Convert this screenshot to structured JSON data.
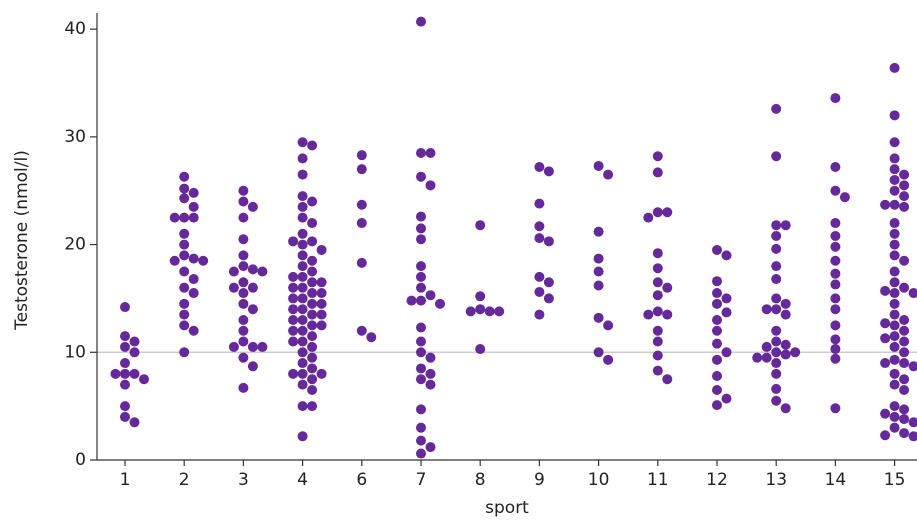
{
  "chart_data": {
    "type": "strip",
    "x_label": "sport",
    "y_label": "Testosterone (nmol/l)",
    "color": "#66299a",
    "categories": [
      "1",
      "2",
      "3",
      "4",
      "6",
      "7",
      "8",
      "9",
      "10",
      "11",
      "12",
      "13",
      "14",
      "15"
    ],
    "values": [
      [
        14.2,
        11.5,
        11,
        10.5,
        10,
        9,
        8,
        8,
        8,
        7.5,
        7,
        5,
        4,
        3.5
      ],
      [
        26.3,
        25.2,
        24.8,
        24.3,
        23.5,
        22.5,
        22.5,
        22.5,
        21,
        20,
        19,
        18.7,
        18.5,
        18.5,
        17.5,
        16.8,
        16,
        15.5,
        14.5,
        13.5,
        12.5,
        12,
        10
      ],
      [
        25,
        24,
        23.5,
        22.5,
        20.5,
        19,
        18,
        17.7,
        17.5,
        17.5,
        16.5,
        16,
        16,
        15.5,
        14.5,
        14,
        13,
        12,
        11,
        10.5,
        10.5,
        10.5,
        9.5,
        8.7,
        6.7
      ],
      [
        29.5,
        29.2,
        28,
        26.5,
        24.5,
        24,
        23.5,
        22.5,
        22,
        21,
        20.3,
        20.3,
        20,
        19.5,
        19,
        18.5,
        18,
        17.5,
        17,
        17,
        16.5,
        16.5,
        16,
        16,
        15.5,
        15.5,
        15,
        15,
        14.5,
        14.5,
        14,
        14,
        13.5,
        13.5,
        13,
        13,
        12.5,
        12.5,
        12,
        12,
        11.5,
        11,
        11,
        10.5,
        10,
        9.5,
        9,
        8.5,
        8,
        8,
        8,
        7.5,
        7,
        6.5,
        5,
        5,
        2.2
      ],
      [
        28.3,
        27,
        23.7,
        22,
        18.3,
        12,
        11.4
      ],
      [
        40.7,
        28.5,
        28.5,
        26.3,
        25.5,
        22.6,
        21.5,
        20.5,
        18,
        17,
        16,
        15.3,
        14.8,
        14.8,
        14.5,
        12.3,
        11,
        10,
        9.5,
        8.5,
        8,
        7.5,
        7,
        4.7,
        3,
        1.8,
        1.2,
        0.6
      ],
      [
        21.8,
        15.2,
        14,
        13.8,
        13.8,
        13.8,
        10.3
      ],
      [
        27.2,
        26.8,
        23.8,
        21.7,
        20.6,
        20.3,
        17,
        16.5,
        15.6,
        15,
        13.5
      ],
      [
        27.3,
        26.5,
        21.2,
        18.7,
        17.5,
        16.2,
        13.2,
        12.5,
        10,
        9.3
      ],
      [
        28.2,
        26.7,
        23,
        23,
        22.5,
        19.2,
        17.8,
        16.5,
        16,
        15.3,
        13.8,
        13.5,
        13.5,
        12,
        11,
        9.7,
        8.3,
        7.5
      ],
      [
        19.5,
        19,
        16.6,
        15.5,
        15,
        14.5,
        13.7,
        13,
        12,
        10.8,
        10,
        9.3,
        7.8,
        6.5,
        5.7,
        5.1
      ],
      [
        32.6,
        28.2,
        21.8,
        21.8,
        20.8,
        19.6,
        18,
        16.8,
        15,
        14.5,
        14,
        14,
        13.5,
        12,
        11,
        10.7,
        10.5,
        10,
        10,
        9.8,
        9.5,
        9.5,
        9,
        8,
        6.6,
        5.5,
        4.8
      ],
      [
        33.6,
        27.2,
        25,
        24.4,
        22,
        20.8,
        19.8,
        18.5,
        17.3,
        16.3,
        15,
        14,
        12.5,
        11.2,
        10.3,
        9.4,
        4.8
      ],
      [
        36.4,
        32,
        29.5,
        28,
        27,
        26.5,
        26,
        25.5,
        25,
        24.5,
        23.7,
        23.7,
        23.5,
        22,
        21,
        20,
        19,
        18.5,
        17.5,
        16.5,
        16,
        15.7,
        15.5,
        15.5,
        14.5,
        13.5,
        13,
        12.7,
        12.5,
        12,
        11.5,
        11.3,
        11,
        10.5,
        10,
        9.3,
        9,
        9,
        8.7,
        8,
        7.5,
        7,
        6.5,
        5,
        4.7,
        4.3,
        4,
        3.8,
        3.5,
        3,
        2.5,
        2.3,
        2.2
      ]
    ],
    "ylim": [
      0,
      41.5
    ],
    "yticks": [
      0,
      10,
      20,
      30,
      40
    ],
    "reference_line": 10,
    "reference_color": "#cccccc"
  }
}
